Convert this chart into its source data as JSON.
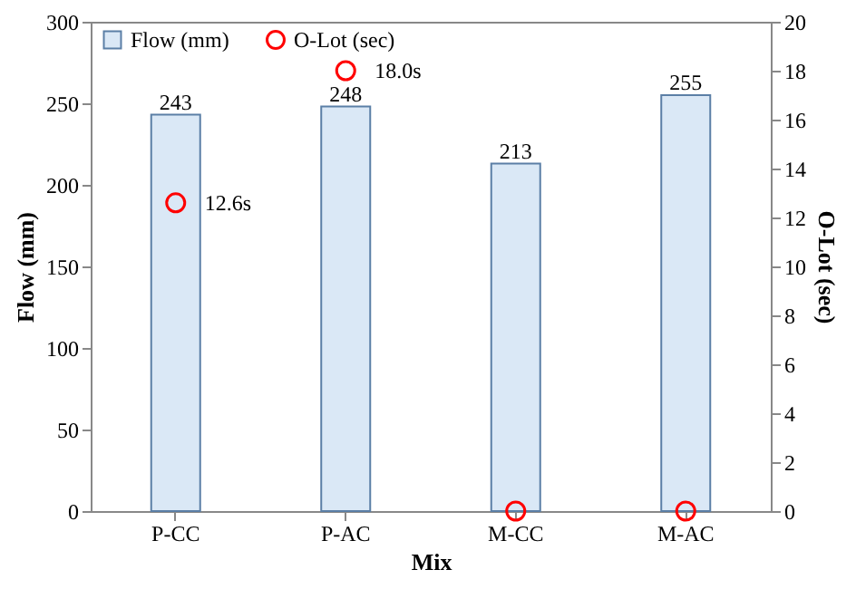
{
  "chart_data": {
    "type": "bar",
    "xlabel": "Mix",
    "ylabel": "Flow (mm)",
    "y2label": "O-Lot (sec)",
    "categories": [
      "P-CC",
      "P-AC",
      "M-CC",
      "M-AC"
    ],
    "series": [
      {
        "name": "Flow (mm)",
        "type": "bar",
        "color": "#dae8f6",
        "values": [
          243,
          248,
          213,
          255
        ],
        "value_labels": [
          "243",
          "248",
          "213",
          "255"
        ]
      },
      {
        "name": "O-Lot (sec)",
        "type": "scatter",
        "axis": "y2",
        "color": "#ff0000",
        "marker": "circle",
        "values": [
          12.6,
          18.0,
          0,
          0
        ],
        "value_labels": [
          "12.6s",
          "18.0s",
          null,
          null
        ]
      }
    ],
    "ylim": [
      0,
      300
    ],
    "yticks": [
      0,
      50,
      100,
      150,
      200,
      250,
      300
    ],
    "y2lim": [
      0,
      20
    ],
    "y2ticks": [
      0,
      2,
      4,
      6,
      8,
      10,
      12,
      14,
      16,
      18,
      20
    ],
    "legend": "top left",
    "grid": false
  }
}
